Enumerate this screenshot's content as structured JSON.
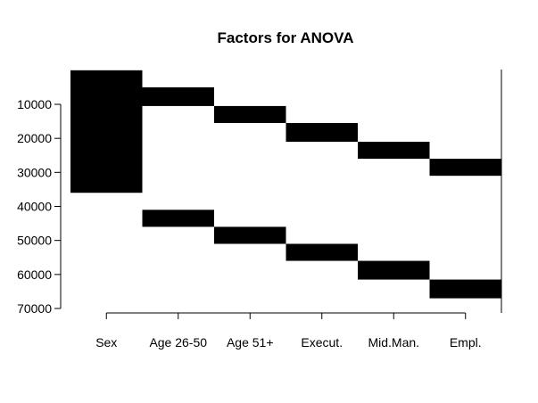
{
  "chart_data": {
    "type": "heatmap",
    "title": "Factors for ANOVA",
    "xlabel": "",
    "ylabel": "",
    "categories": [
      "Sex",
      "Age 26-50",
      "Age 51+",
      "Execut.",
      "Mid.Man.",
      "Empl."
    ],
    "y_ticks": [
      10000,
      20000,
      30000,
      40000,
      50000,
      60000,
      70000
    ],
    "y_tick_labels": [
      "10000",
      "20000",
      "30000",
      "40000",
      "50000",
      "60000",
      "70000"
    ],
    "ylim": [
      72500,
      0
    ],
    "y_reversed": true,
    "grid": false,
    "legend": "none",
    "fill_color": "#000000",
    "filled_ranges": [
      {
        "column": "Sex",
        "from": 0,
        "to": 36000
      },
      {
        "column": "Age 26-50",
        "from": 5000,
        "to": 10500
      },
      {
        "column": "Age 26-50",
        "from": 41000,
        "to": 46000
      },
      {
        "column": "Age 51+",
        "from": 10500,
        "to": 15500
      },
      {
        "column": "Age 51+",
        "from": 46000,
        "to": 51000
      },
      {
        "column": "Execut.",
        "from": 15500,
        "to": 21000
      },
      {
        "column": "Execut.",
        "from": 51000,
        "to": 56000
      },
      {
        "column": "Mid.Man.",
        "from": 21000,
        "to": 26000
      },
      {
        "column": "Mid.Man.",
        "from": 56000,
        "to": 61500
      },
      {
        "column": "Empl.",
        "from": 26000,
        "to": 31000
      },
      {
        "column": "Empl.",
        "from": 61500,
        "to": 67000
      }
    ]
  }
}
